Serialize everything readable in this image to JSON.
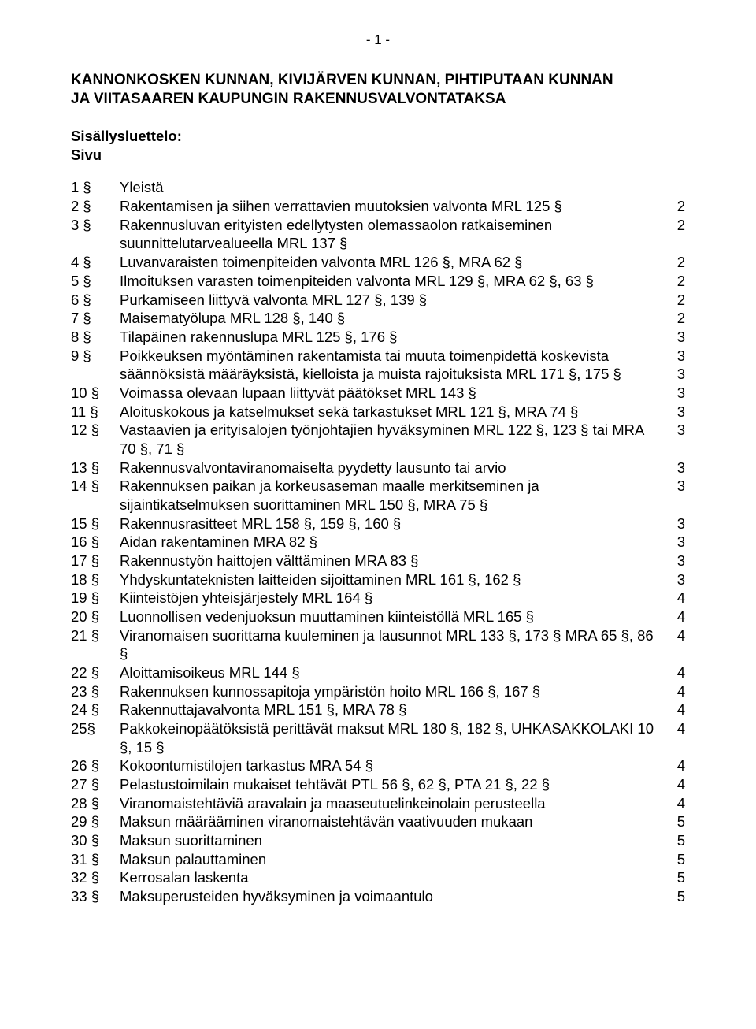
{
  "pageNumber": "- 1 -",
  "titleLines": [
    "KANNONKOSKEN KUNNAN, KIVIJÄRVEN KUNNAN, PIHTIPUTAAN KUNNAN",
    "JA VIITASAAREN KAUPUNGIN RAKENNUSVALVONTATAKSA"
  ],
  "tocHeading": "Sisällysluettelo:",
  "tocSub": "Sivu",
  "entries": [
    {
      "sect": "1 §",
      "label": "Yleistä",
      "page": ""
    },
    {
      "sect": "2 §",
      "label": "Rakentamisen ja siihen verrattavien muutoksien valvonta MRL 125 §",
      "page": "2"
    },
    {
      "sect": "3 §",
      "label": "Rakennusluvan erityisten edellytysten  olemassaolon ratkaiseminen suunnittelutarvealueella MRL 137 §",
      "page": "2"
    },
    {
      "sect": "4 §",
      "label": "Luvanvaraisten toimenpiteiden valvonta MRL 126 §, MRA 62 §",
      "page": "2"
    },
    {
      "sect": "5 §",
      "label": "Ilmoituksen varasten toimenpiteiden valvonta MRL 129 §, MRA 62 §, 63 §",
      "page": "2"
    },
    {
      "sect": "6 §",
      "label": "Purkamiseen liittyvä valvonta MRL 127 §, 139 §",
      "page": "2"
    },
    {
      "sect": "7 §",
      "label": "Maisematyölupa MRL 128 §, 140 §",
      "page": "2"
    },
    {
      "sect": "8 §",
      "label": "Tilapäinen rakennuslupa MRL 125 §, 176 §",
      "page": "3"
    },
    {
      "sect": "9 §",
      "label": "Poikkeuksen myöntäminen rakentamista tai muuta toimenpidettä koskevista säännöksistä  määräyksistä, kielloista ja muista rajoituksista MRL 171 §, 175 §",
      "page": "3\n3"
    },
    {
      "sect": "10 §",
      "label": "Voimassa olevaan lupaan liittyvät päätökset MRL 143 §",
      "page": "3"
    },
    {
      "sect": "11 §",
      "label": "Aloituskokous ja katselmukset sekä tarkastukset MRL 121 §, MRA 74 §",
      "page": "3"
    },
    {
      "sect": "12 §",
      "label": "Vastaavien ja erityisalojen työnjohtajien hyväksyminen MRL 122 §, 123 § tai MRA 70 §, 71 §",
      "page": "3"
    },
    {
      "sect": "13 §",
      "label": "Rakennusvalvontaviranomaiselta pyydetty lausunto tai arvio",
      "page": "3"
    },
    {
      "sect": "14 §",
      "label": "Rakennuksen paikan ja korkeusaseman maalle merkitseminen ja sijaintikatselmuksen suorittaminen MRL 150 §, MRA 75 §",
      "page": "3"
    },
    {
      "sect": "15 §",
      "label": "Rakennusrasitteet MRL 158 §, 159 §, 160 §",
      "page": "3"
    },
    {
      "sect": "16 §",
      "label": "Aidan rakentaminen MRA  82 §",
      "page": "3"
    },
    {
      "sect": "17 §",
      "label": "Rakennustyön haittojen välttäminen MRA 83 §",
      "page": "3"
    },
    {
      "sect": "18 §",
      "label": "Yhdyskuntateknisten laitteiden sijoittaminen MRL 161 §, 162 §",
      "page": "3"
    },
    {
      "sect": "19 §",
      "label": "Kiinteistöjen yhteisjärjestely MRL 164 §",
      "page": "4"
    },
    {
      "sect": "20 §",
      "label": "Luonnollisen vedenjuoksun muuttaminen kiinteistöllä MRL 165 §",
      "page": "4"
    },
    {
      "sect": "21 §",
      "label": "Viranomaisen suorittama kuuleminen ja lausunnot MRL 133 §, 173 § MRA 65 §, 86 §",
      "page": "4"
    },
    {
      "sect": "22 §",
      "label": "Aloittamisoikeus MRL 144 §",
      "page": "4"
    },
    {
      "sect": "23 §",
      "label": "Rakennuksen kunnossapitoja ympäristön hoito MRL 166 §, 167 §",
      "page": "4"
    },
    {
      "sect": "24 §",
      "label": "Rakennuttajavalvonta MRL 151 §, MRA 78 §",
      "page": "4"
    },
    {
      "sect": "25§",
      "label": "Pakkokeinopäätöksistä perittävät maksut MRL 180 §, 182 §, UHKASAKKOLAKI 10 §, 15 §",
      "page": "4"
    },
    {
      "sect": "26 §",
      "label": "Kokoontumistilojen tarkastus MRA 54 §",
      "page": "4"
    },
    {
      "sect": "27 §",
      "label": "Pelastustoimilain mukaiset tehtävät PTL 56 §, 62 §, PTA 21 §, 22 §",
      "page": "4"
    },
    {
      "sect": "28 §",
      "label": "Viranomaistehtäviä aravalain ja maaseutuelinkeinolain perusteella",
      "page": "4"
    },
    {
      "sect": "29 §",
      "label": "Maksun määrääminen viranomaistehtävän vaativuuden mukaan",
      "page": "5"
    },
    {
      "sect": "30 §",
      "label": "Maksun suorittaminen",
      "page": "5"
    },
    {
      "sect": "31 §",
      "label": "Maksun palauttaminen",
      "page": "5"
    },
    {
      "sect": "32 §",
      "label": "Kerrosalan laskenta",
      "page": "5"
    },
    {
      "sect": "33 §",
      "label": "Maksuperusteiden hyväksyminen ja voimaantulo",
      "page": "5"
    }
  ]
}
